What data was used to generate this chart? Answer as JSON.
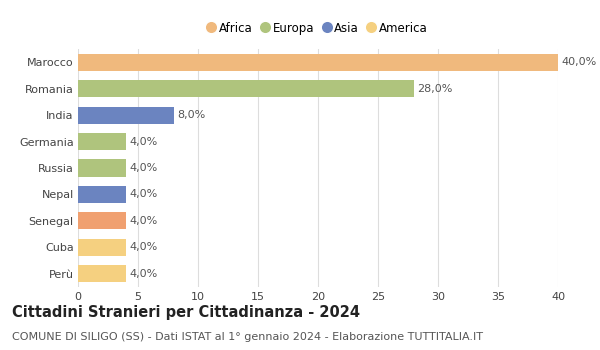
{
  "categories": [
    "Marocco",
    "Romania",
    "India",
    "Germania",
    "Russia",
    "Nepal",
    "Senegal",
    "Cuba",
    "Perù"
  ],
  "values": [
    40.0,
    28.0,
    8.0,
    4.0,
    4.0,
    4.0,
    4.0,
    4.0,
    4.0
  ],
  "labels": [
    "40,0%",
    "28,0%",
    "8,0%",
    "4,0%",
    "4,0%",
    "4,0%",
    "4,0%",
    "4,0%",
    "4,0%"
  ],
  "colors": [
    "#f0b97d",
    "#afc47d",
    "#6b84c0",
    "#afc47d",
    "#afc47d",
    "#6b84c0",
    "#f0a070",
    "#f5d080",
    "#f5d080"
  ],
  "legend_labels": [
    "Africa",
    "Europa",
    "Asia",
    "America"
  ],
  "legend_colors": [
    "#f0b97d",
    "#afc47d",
    "#6b84c0",
    "#f5d080"
  ],
  "title": "Cittadini Stranieri per Cittadinanza - 2024",
  "subtitle": "COMUNE DI SILIGO (SS) - Dati ISTAT al 1° gennaio 2024 - Elaborazione TUTTITALIA.IT",
  "xlim": [
    0,
    40
  ],
  "xticks": [
    0,
    5,
    10,
    15,
    20,
    25,
    30,
    35,
    40
  ],
  "background_color": "#ffffff",
  "grid_color": "#dddddd",
  "label_fontsize": 8,
  "tick_fontsize": 8,
  "title_fontsize": 10.5,
  "subtitle_fontsize": 8
}
